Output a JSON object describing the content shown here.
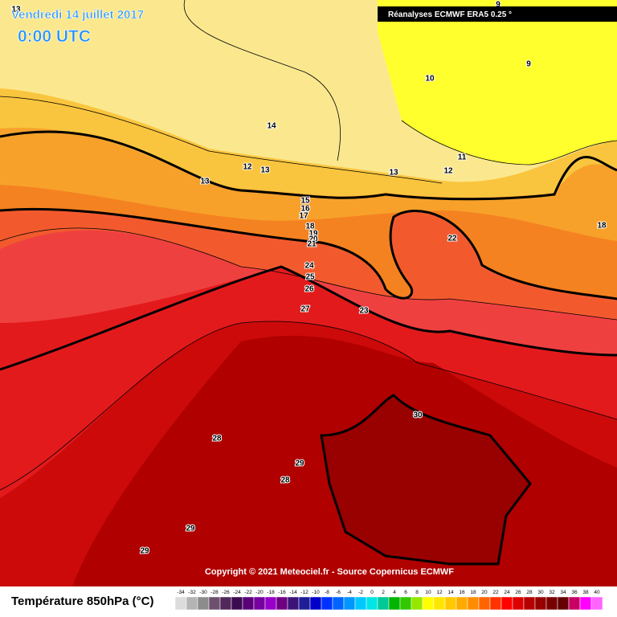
{
  "header": {
    "date": "Vendredi 14 juillet 2017",
    "time": "0:00 UTC",
    "source": "Réanalyses ECMWF ERA5 0.25 °"
  },
  "copyright": "Copyright © 2021 Meteociel.fr - Source Copernicus ECMWF",
  "contour_labels": [
    13,
    14,
    13,
    12,
    13,
    10,
    9,
    9,
    11,
    12,
    13,
    15,
    16,
    17,
    18,
    19,
    20,
    21,
    22,
    18,
    24,
    25,
    26,
    27,
    23,
    30,
    28,
    29,
    28,
    29,
    29
  ],
  "legend": {
    "title": "Température 850hPa (°C)",
    "ticks": [
      -34,
      -32,
      -30,
      -28,
      -26,
      -24,
      -22,
      -20,
      -18,
      -16,
      -14,
      -12,
      -10,
      -8,
      -6,
      -4,
      -2,
      0,
      2,
      4,
      6,
      8,
      10,
      12,
      14,
      16,
      18,
      20,
      22,
      24,
      26,
      28,
      30,
      32,
      34,
      36,
      38,
      40
    ],
    "colors": [
      "#dcdcdc",
      "#b4b4b4",
      "#8c8c8c",
      "#6e506e",
      "#50285a",
      "#3c0a50",
      "#5a0078",
      "#7800a0",
      "#9600c8",
      "#6e0082",
      "#3c1478",
      "#1e1e96",
      "#0000c8",
      "#0032ff",
      "#0064ff",
      "#0096ff",
      "#00c8ff",
      "#00e6e6",
      "#00c896",
      "#00b400",
      "#32c800",
      "#96e600",
      "#ffff00",
      "#ffe600",
      "#ffc800",
      "#ffaa00",
      "#ff8c00",
      "#ff6400",
      "#ff3200",
      "#ff0000",
      "#dc0000",
      "#b40000",
      "#960000",
      "#780000",
      "#640000",
      "#c80064",
      "#ff00ff",
      "#ff64ff"
    ]
  }
}
